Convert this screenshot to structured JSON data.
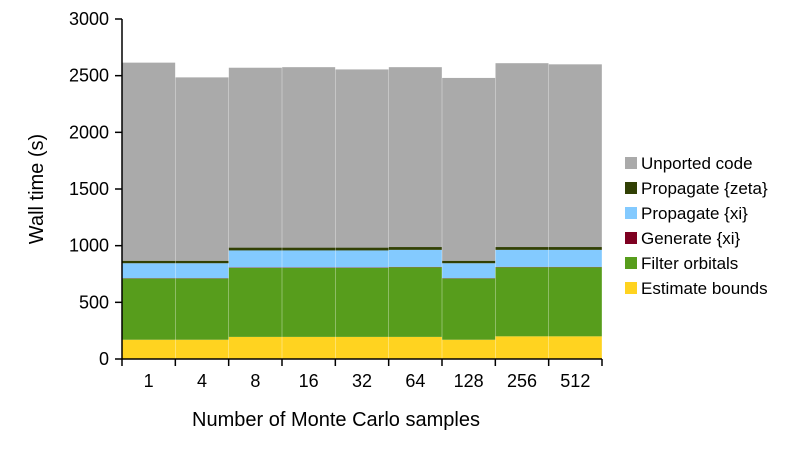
{
  "chart_data": {
    "type": "bar",
    "stacked": true,
    "title": "",
    "xlabel": "Number of Monte Carlo samples",
    "ylabel": "Wall time (s)",
    "ylim": [
      0,
      3000
    ],
    "yticks": [
      0,
      500,
      1000,
      1500,
      2000,
      2500,
      3000
    ],
    "grid": false,
    "legend_position": "right",
    "categories": [
      "1",
      "4",
      "8",
      "16",
      "32",
      "64",
      "128",
      "256",
      "512"
    ],
    "series": [
      {
        "name": "Estimate bounds",
        "color": "#ffd320",
        "values": [
          170,
          170,
          195,
          195,
          195,
          195,
          170,
          200,
          200
        ]
      },
      {
        "name": "Filter orbitals",
        "color": "#579d1c",
        "values": [
          540,
          540,
          610,
          610,
          610,
          615,
          540,
          610,
          610
        ]
      },
      {
        "name": "Generate {xi}",
        "color": "#7e0021",
        "values": [
          3,
          3,
          3,
          3,
          3,
          3,
          3,
          3,
          3
        ]
      },
      {
        "name": "Propagate {xi}",
        "color": "#83caff",
        "values": [
          132,
          132,
          150,
          150,
          150,
          150,
          132,
          150,
          150
        ]
      },
      {
        "name": "Propagate {zeta}",
        "color": "#314004",
        "values": [
          22,
          22,
          25,
          25,
          25,
          25,
          22,
          25,
          25
        ]
      },
      {
        "name": "Unported code",
        "color": "#aaaaaa",
        "values": [
          1748,
          1618,
          1587,
          1592,
          1572,
          1587,
          1613,
          1622,
          1612
        ]
      }
    ],
    "legend_order": [
      "Unported code",
      "Propagate {zeta}",
      "Propagate {xi}",
      "Generate {xi}",
      "Filter orbitals",
      "Estimate bounds"
    ]
  }
}
